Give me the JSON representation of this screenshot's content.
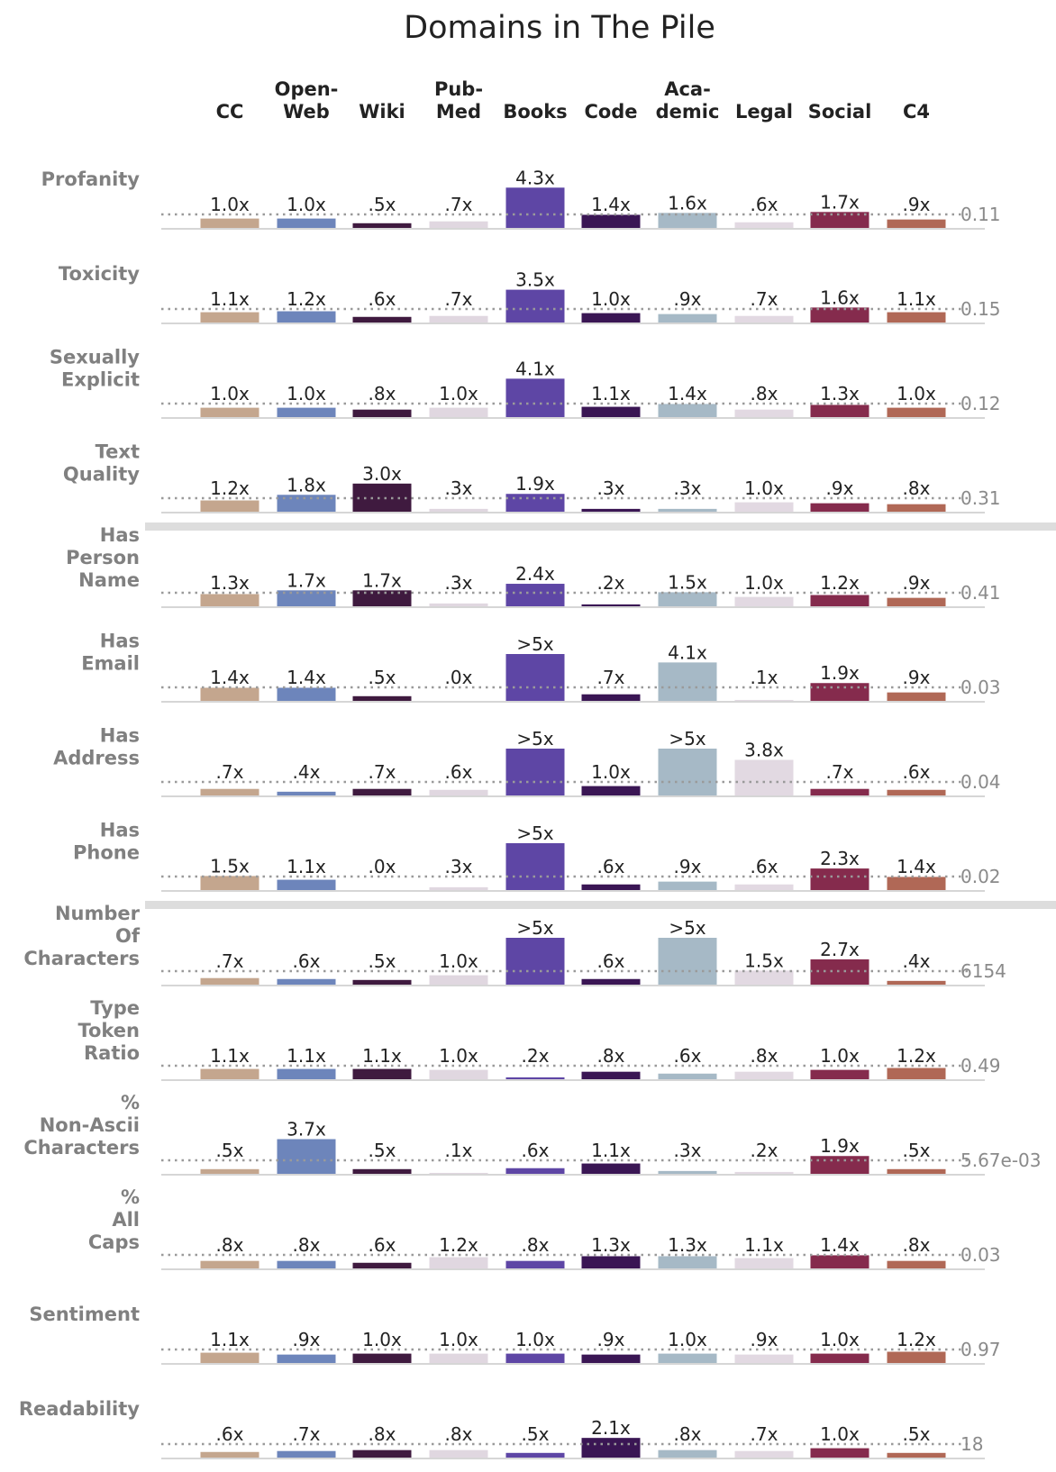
{
  "chart_data": {
    "type": "bar",
    "title": "Domains in The Pile",
    "domains": [
      {
        "label": [
          "CC"
        ],
        "color": "#c4a68e"
      },
      {
        "label": [
          "Open-",
          "Web"
        ],
        "color": "#6d85bb"
      },
      {
        "label": [
          "Wiki"
        ],
        "color": "#3f1a3f"
      },
      {
        "label": [
          "Pub-",
          "Med"
        ],
        "color": "#e0d7e0"
      },
      {
        "label": [
          "Books"
        ],
        "color": "#5e46a5"
      },
      {
        "label": [
          "Code"
        ],
        "color": "#3a1654"
      },
      {
        "label": [
          "Aca-",
          "demic"
        ],
        "color": "#a6b9c6"
      },
      {
        "label": [
          "Legal"
        ],
        "color": "#e2d9e2"
      },
      {
        "label": [
          "Social"
        ],
        "color": "#852b4d"
      },
      {
        "label": [
          "C4"
        ],
        "color": "#b06856"
      }
    ],
    "group_separators_after_rows": [
      3,
      7
    ],
    "rows": [
      {
        "label": [
          "Profanity"
        ],
        "baseline": "0.11",
        "values": [
          1.0,
          1.0,
          0.5,
          0.7,
          4.3,
          1.4,
          1.6,
          0.6,
          1.7,
          0.9
        ],
        "labels": [
          "1.0x",
          "1.0x",
          ".5x",
          ".7x",
          "4.3x",
          "1.4x",
          "1.6x",
          ".6x",
          "1.7x",
          ".9x"
        ]
      },
      {
        "label": [
          "Toxicity"
        ],
        "baseline": "0.15",
        "values": [
          1.1,
          1.2,
          0.6,
          0.7,
          3.5,
          1.0,
          0.9,
          0.7,
          1.6,
          1.1
        ],
        "labels": [
          "1.1x",
          "1.2x",
          ".6x",
          ".7x",
          "3.5x",
          "1.0x",
          ".9x",
          ".7x",
          "1.6x",
          "1.1x"
        ]
      },
      {
        "label": [
          "Sexually",
          "Explicit"
        ],
        "baseline": "0.12",
        "values": [
          1.0,
          1.0,
          0.8,
          1.0,
          4.1,
          1.1,
          1.4,
          0.8,
          1.3,
          1.0
        ],
        "labels": [
          "1.0x",
          "1.0x",
          ".8x",
          "1.0x",
          "4.1x",
          "1.1x",
          "1.4x",
          ".8x",
          "1.3x",
          "1.0x"
        ]
      },
      {
        "label": [
          "Text",
          "Quality"
        ],
        "baseline": "0.31",
        "values": [
          1.2,
          1.8,
          3.0,
          0.3,
          1.9,
          0.3,
          0.3,
          1.0,
          0.9,
          0.8
        ],
        "labels": [
          "1.2x",
          "1.8x",
          "3.0x",
          ".3x",
          "1.9x",
          ".3x",
          ".3x",
          "1.0x",
          ".9x",
          ".8x"
        ]
      },
      {
        "label": [
          "Has",
          "Person",
          "Name"
        ],
        "baseline": "0.41",
        "values": [
          1.3,
          1.7,
          1.7,
          0.3,
          2.4,
          0.2,
          1.5,
          1.0,
          1.2,
          0.9
        ],
        "labels": [
          "1.3x",
          "1.7x",
          "1.7x",
          ".3x",
          "2.4x",
          ".2x",
          "1.5x",
          "1.0x",
          "1.2x",
          ".9x"
        ]
      },
      {
        "label": [
          "Has",
          "Email"
        ],
        "baseline": "0.03",
        "values": [
          1.4,
          1.4,
          0.5,
          0.0,
          5.0,
          0.7,
          4.1,
          0.1,
          1.9,
          0.9
        ],
        "labels": [
          "1.4x",
          "1.4x",
          ".5x",
          ".0x",
          ">5x",
          ".7x",
          "4.1x",
          ".1x",
          "1.9x",
          ".9x"
        ]
      },
      {
        "label": [
          "Has",
          "Address"
        ],
        "baseline": "0.04",
        "values": [
          0.7,
          0.4,
          0.7,
          0.6,
          5.0,
          1.0,
          5.0,
          3.8,
          0.7,
          0.6
        ],
        "labels": [
          ".7x",
          ".4x",
          ".7x",
          ".6x",
          ">5x",
          "1.0x",
          ">5x",
          "3.8x",
          ".7x",
          ".6x"
        ]
      },
      {
        "label": [
          "Has",
          "Phone"
        ],
        "baseline": "0.02",
        "values": [
          1.5,
          1.1,
          0.0,
          0.3,
          5.0,
          0.6,
          0.9,
          0.6,
          2.3,
          1.4
        ],
        "labels": [
          "1.5x",
          "1.1x",
          ".0x",
          ".3x",
          ">5x",
          ".6x",
          ".9x",
          ".6x",
          "2.3x",
          "1.4x"
        ]
      },
      {
        "label": [
          "Number",
          "Of",
          "Characters"
        ],
        "baseline": "6154",
        "values": [
          0.7,
          0.6,
          0.5,
          1.0,
          5.0,
          0.6,
          5.0,
          1.5,
          2.7,
          0.4
        ],
        "labels": [
          ".7x",
          ".6x",
          ".5x",
          "1.0x",
          ">5x",
          ".6x",
          ">5x",
          "1.5x",
          "2.7x",
          ".4x"
        ]
      },
      {
        "label": [
          "Type",
          "Token",
          "Ratio"
        ],
        "baseline": "0.49",
        "values": [
          1.1,
          1.1,
          1.1,
          1.0,
          0.2,
          0.8,
          0.6,
          0.8,
          1.0,
          1.2
        ],
        "labels": [
          "1.1x",
          "1.1x",
          "1.1x",
          "1.0x",
          ".2x",
          ".8x",
          ".6x",
          ".8x",
          "1.0x",
          "1.2x"
        ]
      },
      {
        "label": [
          "%",
          "Non-Ascii",
          "Characters"
        ],
        "baseline": "5.67e-03",
        "values": [
          0.5,
          3.7,
          0.5,
          0.1,
          0.6,
          1.1,
          0.3,
          0.2,
          1.9,
          0.5
        ],
        "labels": [
          ".5x",
          "3.7x",
          ".5x",
          ".1x",
          ".6x",
          "1.1x",
          ".3x",
          ".2x",
          "1.9x",
          ".5x"
        ]
      },
      {
        "label": [
          "%",
          "All",
          "Caps"
        ],
        "baseline": "0.03",
        "values": [
          0.8,
          0.8,
          0.6,
          1.2,
          0.8,
          1.3,
          1.3,
          1.1,
          1.4,
          0.8
        ],
        "labels": [
          ".8x",
          ".8x",
          ".6x",
          "1.2x",
          ".8x",
          "1.3x",
          "1.3x",
          "1.1x",
          "1.4x",
          ".8x"
        ]
      },
      {
        "label": [
          "Sentiment"
        ],
        "baseline": "0.97",
        "values": [
          1.1,
          0.9,
          1.0,
          1.0,
          1.0,
          0.9,
          1.0,
          0.9,
          1.0,
          1.2
        ],
        "labels": [
          "1.1x",
          ".9x",
          "1.0x",
          "1.0x",
          "1.0x",
          ".9x",
          "1.0x",
          ".9x",
          "1.0x",
          "1.2x"
        ]
      },
      {
        "label": [
          "Readability"
        ],
        "baseline": "18",
        "values": [
          0.6,
          0.7,
          0.8,
          0.8,
          0.5,
          2.1,
          0.8,
          0.7,
          1.0,
          0.5
        ],
        "labels": [
          ".6x",
          ".7x",
          ".8x",
          ".8x",
          ".5x",
          "2.1x",
          ".8x",
          ".7x",
          "1.0x",
          ".5x"
        ]
      }
    ]
  }
}
